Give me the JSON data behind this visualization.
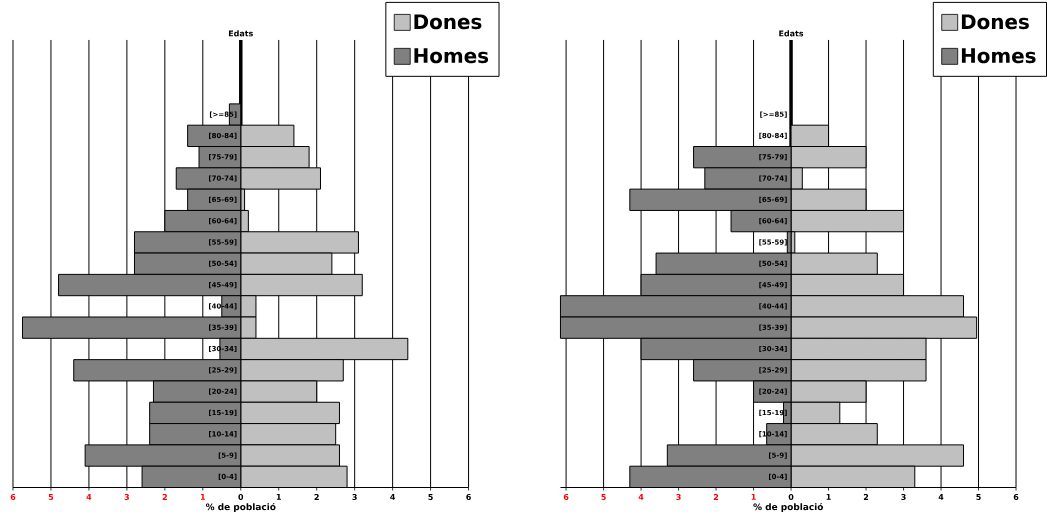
{
  "chart_data": [
    {
      "type": "bar",
      "orientation": "horizontal",
      "ylabel": "Edats",
      "xlabel": "% de població",
      "categories": [
        "[>=85]",
        "[80-84]",
        "[75-79]",
        "[70-74]",
        "[65-69]",
        "[60-64]",
        "[55-59]",
        "[50-54]",
        "[45-49]",
        "[40-44]",
        "[35-39]",
        "[30-34]",
        "[25-29]",
        "[20-24]",
        "[15-19]",
        "[10-14]",
        "[5-9]",
        "[0-4]"
      ],
      "series": [
        {
          "name": "Dones",
          "color": "#c0c0c0",
          "values": [
            null,
            1.4,
            1.8,
            2.1,
            0.1,
            0.2,
            3.1,
            2.4,
            3.2,
            0.4,
            0.4,
            4.4,
            2.7,
            2.0,
            2.6,
            2.5,
            2.6,
            2.8
          ]
        },
        {
          "name": "Homes",
          "color": "#808080",
          "values": [
            -0.3,
            -1.4,
            -1.1,
            -1.7,
            -1.4,
            -2.0,
            -2.8,
            -2.8,
            -4.8,
            -0.5,
            -5.75,
            -0.55,
            -4.4,
            -2.3,
            -2.4,
            -2.4,
            -4.1,
            -2.6
          ]
        }
      ],
      "xlim": [
        -6,
        6
      ],
      "xticks": [
        {
          "value": -6,
          "label": "6"
        },
        {
          "value": -5,
          "label": "5"
        },
        {
          "value": -4,
          "label": "4"
        },
        {
          "value": -3,
          "label": "3"
        },
        {
          "value": -2,
          "label": "2"
        },
        {
          "value": -1,
          "label": "1"
        },
        0,
        1,
        2,
        3,
        4,
        5,
        6
      ],
      "grid": "x",
      "legend": "top right",
      "stacked": true
    },
    {
      "type": "bar",
      "orientation": "horizontal",
      "ylabel": "Edats",
      "xlabel": "% de població",
      "categories": [
        "[>=85]",
        "[80-84]",
        "[75-79]",
        "[70-74]",
        "[65-69]",
        "[60-64]",
        "[55-59]",
        "[50-54]",
        "[45-49]",
        "[40-44]",
        "[35-39]",
        "[30-34]",
        "[25-29]",
        "[20-24]",
        "[15-19]",
        "[10-14]",
        "[5-9]",
        "[0-4]"
      ],
      "series": [
        {
          "name": "Dones",
          "color": "#c0c0c0",
          "values": [
            null,
            1.0,
            2.0,
            0.3,
            2.0,
            3.0,
            0.1,
            2.3,
            3.0,
            4.6,
            4.95,
            3.6,
            3.6,
            2.0,
            1.3,
            2.3,
            4.6,
            3.3
          ]
        },
        {
          "name": "Homes",
          "color": "#808080",
          "values": [
            null,
            null,
            -2.6,
            -2.3,
            -4.3,
            -1.6,
            -0.1,
            -3.6,
            -4.0,
            -6.15,
            -6.15,
            -4.0,
            -2.6,
            -1.0,
            -0.2,
            -0.65,
            -3.3,
            -4.3
          ]
        }
      ],
      "xlim": [
        -6.15,
        6
      ],
      "xticks": [
        {
          "value": -6,
          "label": "6"
        },
        {
          "value": -5,
          "label": "5"
        },
        {
          "value": -4,
          "label": "4"
        },
        {
          "value": -3,
          "label": "3"
        },
        {
          "value": -2,
          "label": "2"
        },
        {
          "value": -1,
          "label": "1"
        },
        0,
        1,
        2,
        3,
        4,
        5,
        6
      ],
      "grid": "x",
      "legend": "top right",
      "stacked": true
    }
  ]
}
